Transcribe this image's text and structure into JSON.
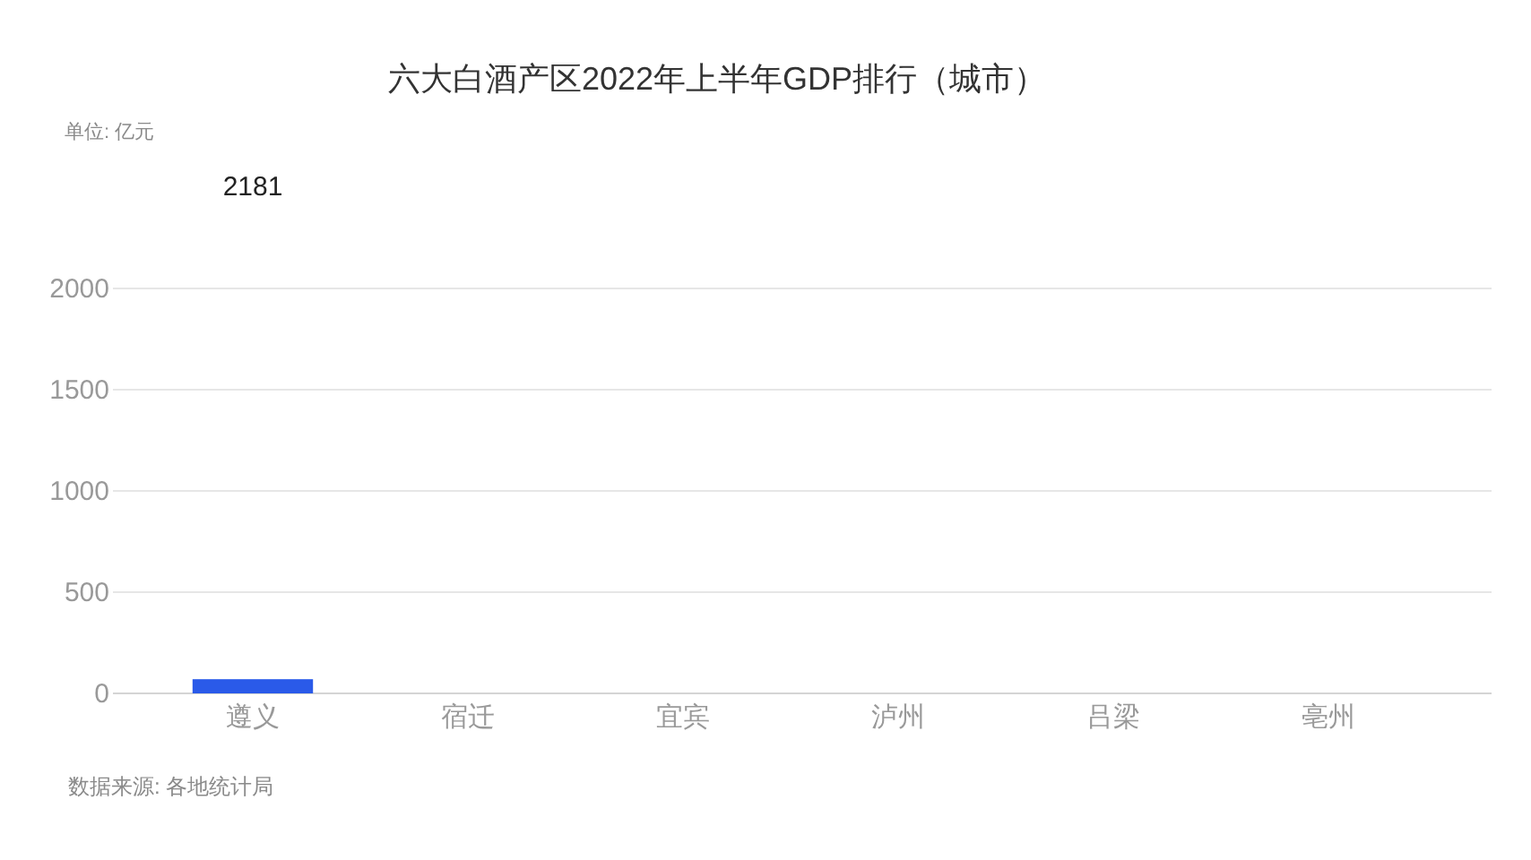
{
  "chart_data": {
    "type": "bar",
    "title": "六大白酒产区2022年上半年GDP排行（城市）",
    "categories": [
      "遵义",
      "宿迁",
      "宜宾",
      "泸州",
      "吕梁",
      "亳州"
    ],
    "values": [
      70,
      null,
      null,
      null,
      null,
      null
    ],
    "color": "#2a5ae9",
    "ylim": [
      0,
      2000
    ],
    "yticks": [
      0,
      500,
      1000,
      1500,
      2000
    ],
    "grid": "y",
    "annotations": [
      "单位: 亿元",
      "2181",
      "数据来源: 各地统计局"
    ]
  }
}
